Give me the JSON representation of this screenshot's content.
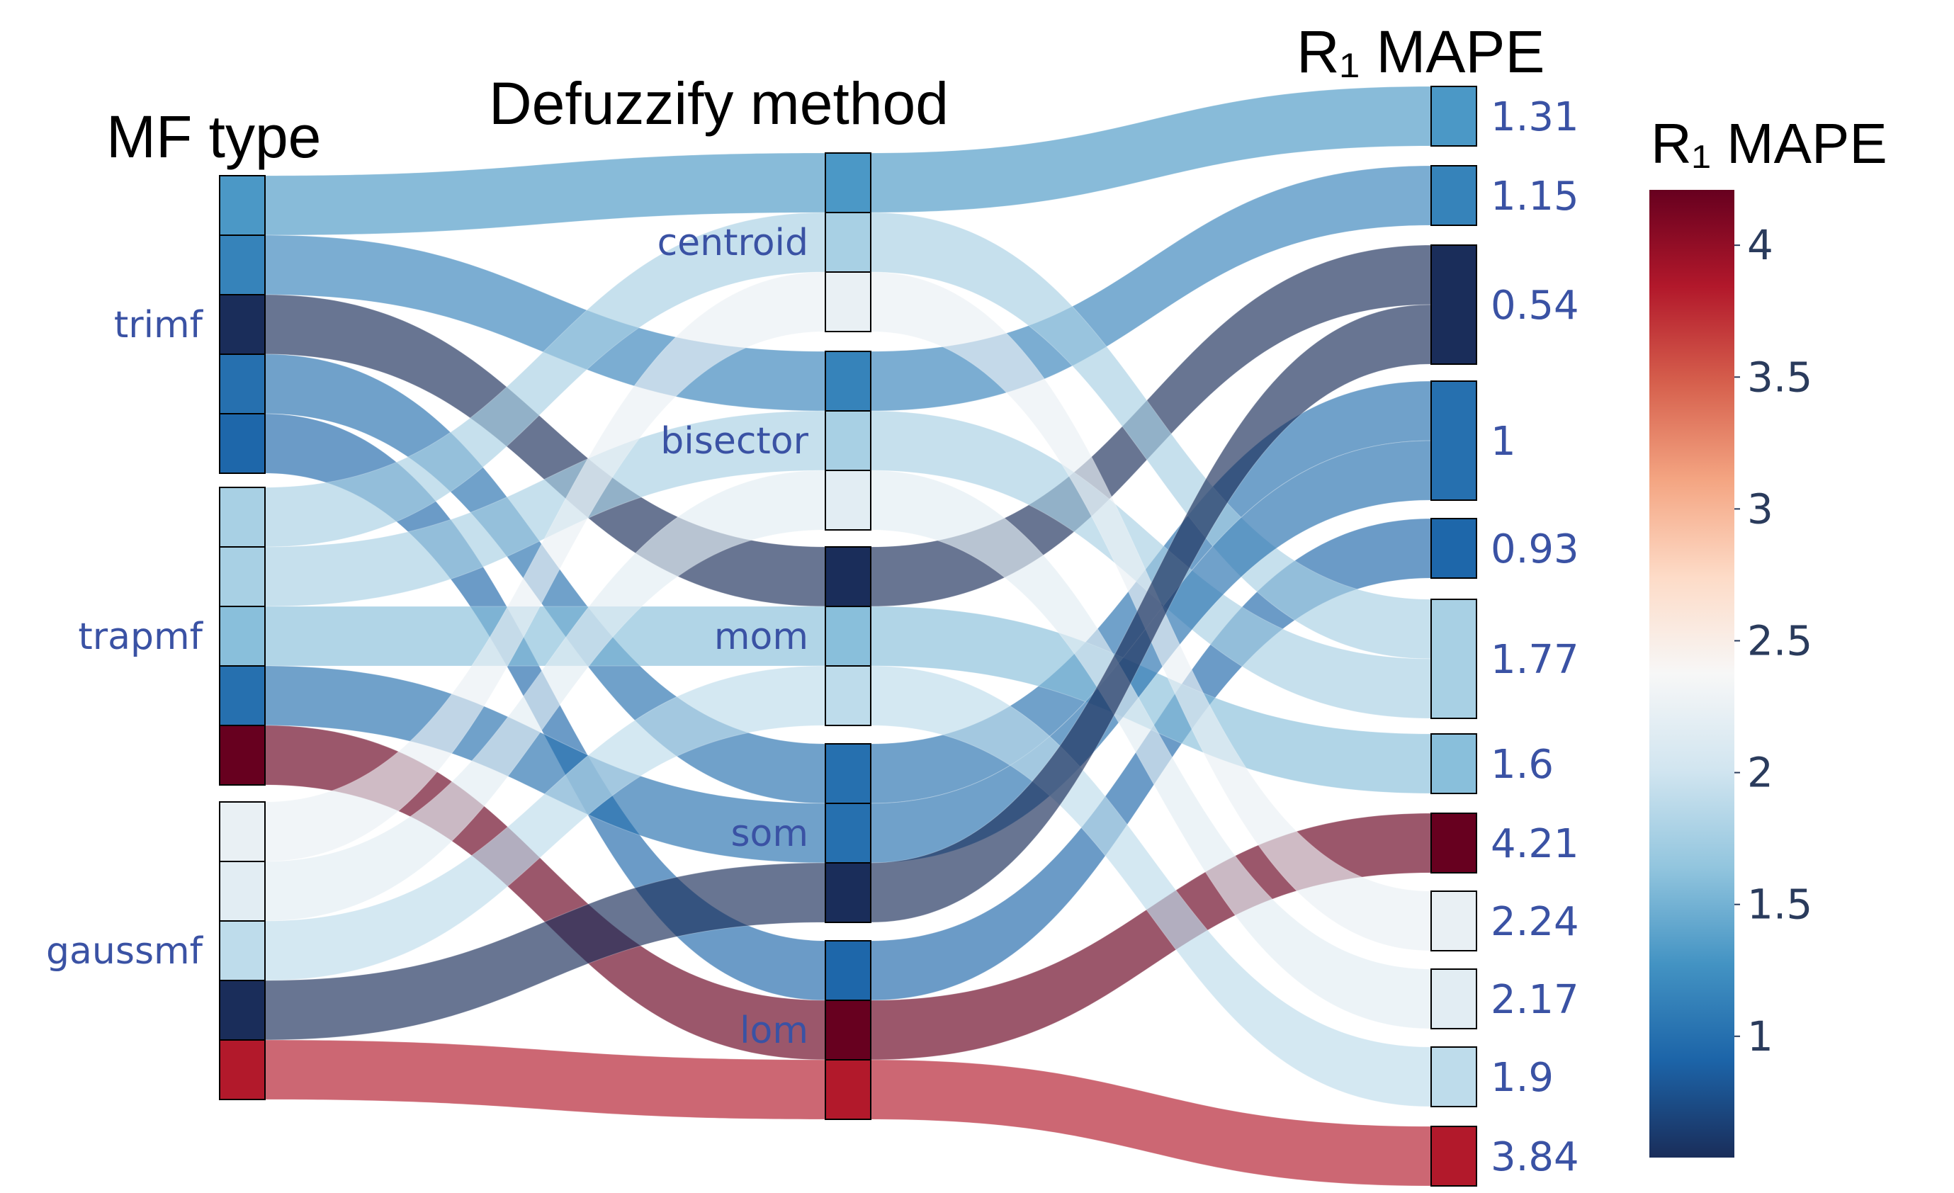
{
  "chart_data": {
    "type": "sankey",
    "column_titles": [
      "MF type",
      "Defuzzify method",
      "R₁ MAPE"
    ],
    "colorbar_title": "R₁ MAPE",
    "colorbar_ticks": [
      "1",
      "1.5",
      "2",
      "2.5",
      "3",
      "3.5",
      "4"
    ],
    "colorbar_range": [
      0.54,
      4.21
    ],
    "colorscale": [
      "#1a2d5a",
      "#1c64a8",
      "#4393c3",
      "#92c5de",
      "#d1e5f0",
      "#f7f7f7",
      "#fddbc7",
      "#f4a582",
      "#d6604d",
      "#b2182b",
      "#67001f"
    ],
    "mf_types": [
      "trimf",
      "trapmf",
      "gaussmf"
    ],
    "defuzz_methods": [
      "centroid",
      "bisector",
      "mom",
      "som",
      "lom"
    ],
    "combinations": [
      {
        "mf": "trimf",
        "defuzz": "centroid",
        "mape": 1.31,
        "label": "1.31"
      },
      {
        "mf": "trimf",
        "defuzz": "bisector",
        "mape": 1.15,
        "label": "1.15"
      },
      {
        "mf": "trimf",
        "defuzz": "mom",
        "mape": 0.54,
        "label": "0.54"
      },
      {
        "mf": "trimf",
        "defuzz": "som",
        "mape": 1.0,
        "label": "1"
      },
      {
        "mf": "trimf",
        "defuzz": "lom",
        "mape": 0.93,
        "label": "0.93"
      },
      {
        "mf": "trapmf",
        "defuzz": "centroid",
        "mape": 1.77,
        "label": "1.77"
      },
      {
        "mf": "trapmf",
        "defuzz": "bisector",
        "mape": 1.77,
        "label": "1.77"
      },
      {
        "mf": "trapmf",
        "defuzz": "mom",
        "mape": 1.6,
        "label": "1.6"
      },
      {
        "mf": "trapmf",
        "defuzz": "som",
        "mape": 1.0,
        "label": "1"
      },
      {
        "mf": "trapmf",
        "defuzz": "lom",
        "mape": 4.21,
        "label": "4.21"
      },
      {
        "mf": "gaussmf",
        "defuzz": "centroid",
        "mape": 2.24,
        "label": "2.24"
      },
      {
        "mf": "gaussmf",
        "defuzz": "bisector",
        "mape": 2.17,
        "label": "2.17"
      },
      {
        "mf": "gaussmf",
        "defuzz": "mom",
        "mape": 1.9,
        "label": "1.9"
      },
      {
        "mf": "gaussmf",
        "defuzz": "som",
        "mape": 0.54,
        "label": "0.54"
      },
      {
        "mf": "gaussmf",
        "defuzz": "lom",
        "mape": 3.84,
        "label": "3.84"
      }
    ],
    "mape_nodes": [
      {
        "label": "1.31",
        "mape": 1.31,
        "count": 1
      },
      {
        "label": "1.15",
        "mape": 1.15,
        "count": 1
      },
      {
        "label": "0.54",
        "mape": 0.54,
        "count": 2
      },
      {
        "label": "1",
        "mape": 1.0,
        "count": 2
      },
      {
        "label": "0.93",
        "mape": 0.93,
        "count": 1
      },
      {
        "label": "1.77",
        "mape": 1.77,
        "count": 2
      },
      {
        "label": "1.6",
        "mape": 1.6,
        "count": 1
      },
      {
        "label": "4.21",
        "mape": 4.21,
        "count": 1
      },
      {
        "label": "2.24",
        "mape": 2.24,
        "count": 1
      },
      {
        "label": "2.17",
        "mape": 2.17,
        "count": 1
      },
      {
        "label": "1.9",
        "mape": 1.9,
        "count": 1
      },
      {
        "label": "3.84",
        "mape": 3.84,
        "count": 1
      }
    ]
  }
}
